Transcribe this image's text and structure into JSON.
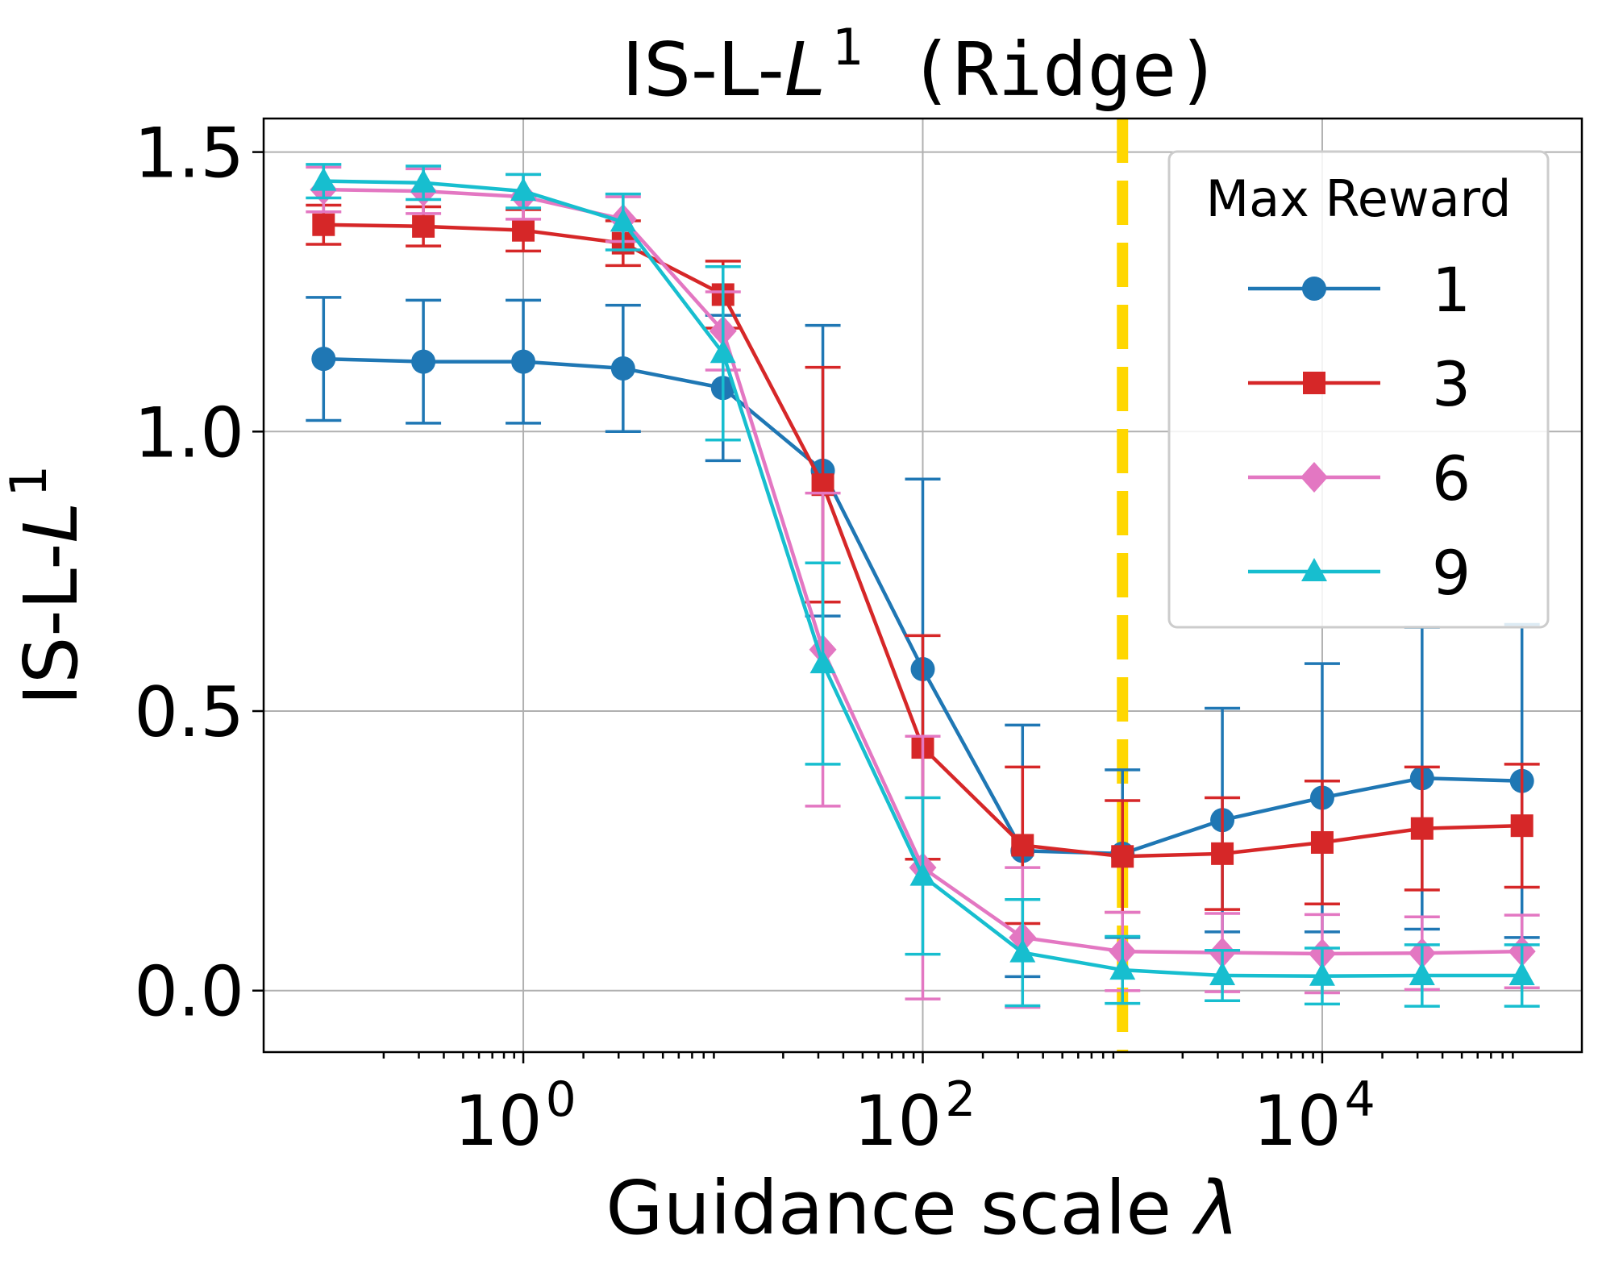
{
  "chart_data": {
    "type": "line",
    "title_main": "IS-L-",
    "title_symbol": "L",
    "title_sup": "1",
    "title_suffix": " (Ridge)",
    "xlabel_main": "Guidance scale ",
    "xlabel_symbol": "λ",
    "ylabel_main": "IS-L-",
    "ylabel_symbol": "L",
    "ylabel_sup": "1",
    "xscale": "log",
    "x_log10_lim": [
      -1.3,
      5.3
    ],
    "ylim": [
      -0.11,
      1.56
    ],
    "grid": true,
    "x_ticks": [
      {
        "exp": 0,
        "base": "10",
        "sup": "0"
      },
      {
        "exp": 2,
        "base": "10",
        "sup": "2"
      },
      {
        "exp": 4,
        "base": "10",
        "sup": "4"
      }
    ],
    "y_ticks": [
      {
        "value": 0.0,
        "label": "0.0"
      },
      {
        "value": 0.5,
        "label": "0.5"
      },
      {
        "value": 1.0,
        "label": "1.0"
      },
      {
        "value": 1.5,
        "label": "1.5"
      }
    ],
    "vline": {
      "x": 1000,
      "color": "#ffd700",
      "style": "dashed"
    },
    "x": [
      0.1,
      0.316,
      1,
      3.16,
      10,
      31.6,
      100,
      316,
      1000,
      3162,
      10000,
      31623,
      100000
    ],
    "series": [
      {
        "name": "1",
        "color": "#1f77b4",
        "marker": "circle",
        "values": [
          1.13,
          1.125,
          1.125,
          1.113,
          1.078,
          0.93,
          0.575,
          0.25,
          0.245,
          0.305,
          0.345,
          0.38,
          0.375
        ],
        "errors": [
          0.11,
          0.11,
          0.11,
          0.113,
          0.13,
          0.26,
          0.34,
          0.225,
          0.15,
          0.2,
          0.24,
          0.27,
          0.28
        ]
      },
      {
        "name": "3",
        "color": "#d62728",
        "marker": "square",
        "values": [
          1.37,
          1.367,
          1.36,
          1.337,
          1.245,
          0.905,
          0.435,
          0.26,
          0.24,
          0.245,
          0.265,
          0.29,
          0.295
        ],
        "errors": [
          0.035,
          0.035,
          0.037,
          0.04,
          0.06,
          0.21,
          0.2,
          0.14,
          0.1,
          0.1,
          0.11,
          0.11,
          0.11
        ]
      },
      {
        "name": "6",
        "color": "#e377c2",
        "marker": "diamond",
        "values": [
          1.433,
          1.43,
          1.42,
          1.38,
          1.18,
          0.61,
          0.22,
          0.095,
          0.07,
          0.068,
          0.066,
          0.067,
          0.07
        ],
        "errors": [
          0.04,
          0.04,
          0.04,
          0.04,
          0.07,
          0.28,
          0.235,
          0.125,
          0.07,
          0.07,
          0.07,
          0.065,
          0.065
        ]
      },
      {
        "name": "9",
        "color": "#17becf",
        "marker": "triangle",
        "values": [
          1.448,
          1.445,
          1.43,
          1.375,
          1.14,
          0.585,
          0.205,
          0.068,
          0.037,
          0.027,
          0.026,
          0.027,
          0.027
        ],
        "errors": [
          0.03,
          0.03,
          0.03,
          0.05,
          0.155,
          0.18,
          0.14,
          0.095,
          0.06,
          0.045,
          0.05,
          0.055,
          0.055
        ]
      }
    ],
    "legend": {
      "title": "Max Reward",
      "position": "upper right"
    }
  }
}
